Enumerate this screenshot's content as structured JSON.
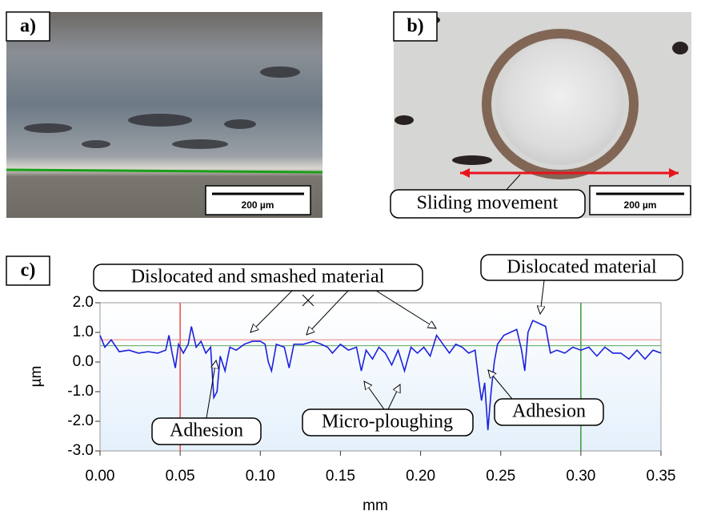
{
  "images": [
    {
      "label": "a)",
      "scale_bar": "200 µm"
    },
    {
      "label": "b)",
      "scale_bar": "200 µm",
      "annotation": "Sliding movement"
    }
  ],
  "chart_data": {
    "type": "line",
    "label": "c)",
    "xlabel": "mm",
    "ylabel": "µm",
    "xlim": [
      0,
      0.35
    ],
    "ylim": [
      -3,
      2
    ],
    "xticks": [
      {
        "value": 0,
        "label": "0.00"
      },
      {
        "value": 0.05,
        "label": "0.05"
      },
      {
        "value": 0.1,
        "label": "0.10"
      },
      {
        "value": 0.15,
        "label": "0.15"
      },
      {
        "value": 0.2,
        "label": "0.20"
      },
      {
        "value": 0.25,
        "label": "0.25"
      },
      {
        "value": 0.3,
        "label": "0.30"
      },
      {
        "value": 0.35,
        "label": "0.35"
      }
    ],
    "yticks": [
      {
        "value": -3,
        "label": "-3.0"
      },
      {
        "value": -2,
        "label": "-2.0"
      },
      {
        "value": -1,
        "label": "-1.0"
      },
      {
        "value": 0,
        "label": "0.0"
      },
      {
        "value": 1,
        "label": "1.0"
      },
      {
        "value": 2,
        "label": "2.0"
      }
    ],
    "color": "#1c22dc",
    "x": [
      0,
      0.003,
      0.007,
      0.012,
      0.018,
      0.024,
      0.03,
      0.036,
      0.041,
      0.043,
      0.045,
      0.047,
      0.049,
      0.052,
      0.055,
      0.057,
      0.06,
      0.063,
      0.066,
      0.069,
      0.071,
      0.073,
      0.075,
      0.078,
      0.081,
      0.085,
      0.09,
      0.095,
      0.1,
      0.103,
      0.105,
      0.107,
      0.11,
      0.115,
      0.118,
      0.121,
      0.127,
      0.133,
      0.138,
      0.142,
      0.145,
      0.15,
      0.155,
      0.16,
      0.163,
      0.166,
      0.17,
      0.174,
      0.178,
      0.182,
      0.186,
      0.19,
      0.194,
      0.198,
      0.202,
      0.206,
      0.21,
      0.214,
      0.218,
      0.222,
      0.226,
      0.23,
      0.234,
      0.236,
      0.238,
      0.24,
      0.242,
      0.244,
      0.246,
      0.248,
      0.252,
      0.256,
      0.26,
      0.263,
      0.265,
      0.267,
      0.27,
      0.274,
      0.278,
      0.281,
      0.285,
      0.29,
      0.295,
      0.3,
      0.305,
      0.31,
      0.315,
      0.32,
      0.325,
      0.33,
      0.335,
      0.34,
      0.345,
      0.35
    ],
    "values": [
      0.9,
      0.5,
      0.75,
      0.35,
      0.4,
      0.3,
      0.35,
      0.3,
      0.4,
      0.9,
      0.3,
      -0.2,
      0.6,
      0.3,
      0.6,
      1.2,
      0.5,
      0.7,
      0.3,
      0.5,
      -1.2,
      -1.0,
      0.2,
      -0.3,
      0.5,
      0.4,
      0.6,
      0.7,
      0.7,
      0.6,
      0.0,
      -0.3,
      0.6,
      0.5,
      -0.2,
      0.6,
      0.6,
      0.7,
      0.6,
      0.5,
      0.3,
      0.6,
      0.4,
      0.5,
      -0.3,
      0.4,
      0.1,
      0.5,
      0.3,
      -0.1,
      0.4,
      -0.3,
      0.5,
      0.3,
      0.5,
      0.2,
      0.9,
      0.6,
      0.3,
      0.6,
      0.5,
      0.3,
      0.4,
      -0.5,
      -1.3,
      -0.7,
      -2.3,
      -1.0,
      0.0,
      0.6,
      0.9,
      1.0,
      1.1,
      0.4,
      -0.3,
      1.0,
      1.4,
      1.3,
      1.2,
      0.3,
      0.4,
      0.3,
      0.5,
      0.4,
      0.5,
      0.2,
      0.5,
      0.3,
      0.3,
      0.1,
      0.4,
      0.1,
      0.4,
      0.3
    ],
    "reference_lines": [
      {
        "axis": "x",
        "value": 0.05,
        "color": "#f04848"
      },
      {
        "axis": "x",
        "value": 0.3,
        "color": "#3a9a3a"
      },
      {
        "axis": "y",
        "value": 0.75,
        "color": "#f08080"
      },
      {
        "axis": "y",
        "value": 0.55,
        "color": "#5aaa5a"
      }
    ],
    "annotations": [
      "Dislocated and smashed material",
      "Dislocated material",
      "Adhesion",
      "Micro-ploughing",
      "Adhesion"
    ]
  }
}
